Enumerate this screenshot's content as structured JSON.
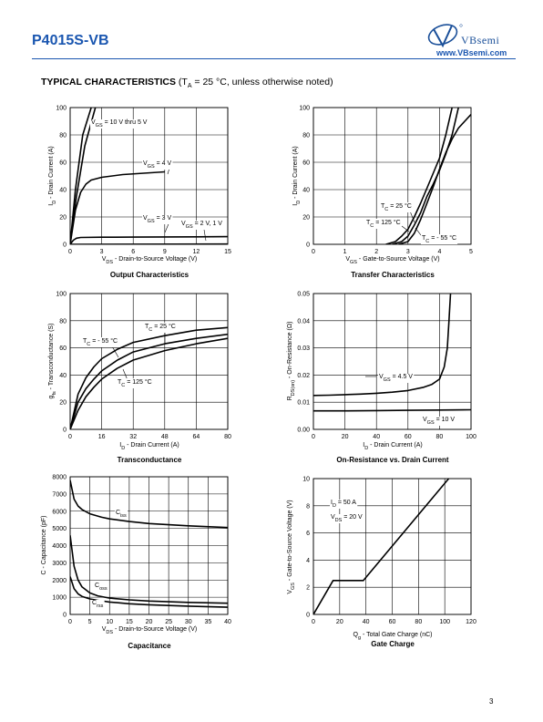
{
  "header": {
    "part_number": "P4015S-VB",
    "logo_text": "VBsemi",
    "logo_url": "www.VBsemi.com",
    "section_bold": "TYPICAL CHARACTERISTICS",
    "section_open": " (T",
    "section_sub": "A",
    "section_rest": " = 25 °C, unless otherwise noted)"
  },
  "page_number": "3",
  "chart_data": [
    {
      "id": "output",
      "type": "line",
      "title": "Output Characteristics",
      "xlabel": "V_DS - Drain-to-Source Voltage (V)",
      "ylabel": "I_D - Drain Current (A)",
      "xlim": [
        0,
        15
      ],
      "ylim": [
        0,
        100
      ],
      "xticks": [
        "0",
        "3",
        "6",
        "9",
        "12",
        "15"
      ],
      "yticks": [
        "0",
        "20",
        "40",
        "60",
        "80",
        "100"
      ],
      "grid": true,
      "series": [
        {
          "name": "V_GS = 10 V thru 5 V",
          "x": [
            0,
            0.5,
            1.2,
            2.0
          ],
          "y": [
            0,
            40,
            80,
            100
          ]
        },
        {
          "name": "",
          "x": [
            0,
            0.6,
            1.4,
            2.4
          ],
          "y": [
            0,
            35,
            72,
            100
          ]
        },
        {
          "name": "V_GS = 4 V",
          "x": [
            0,
            0.5,
            1.0,
            1.5,
            2.0,
            3,
            5,
            7,
            9
          ],
          "y": [
            0,
            25,
            38,
            44,
            47,
            49,
            51,
            52,
            53
          ]
        },
        {
          "name": "V_GS = 3 V",
          "x": [
            0,
            0.3,
            0.6,
            1,
            3,
            6,
            9,
            12,
            15
          ],
          "y": [
            0,
            3,
            4.5,
            5,
            5.2,
            5.3,
            5.4,
            5.5,
            5.6
          ]
        },
        {
          "name": "V_GS = 2 V, 1 V",
          "x": [
            0,
            15
          ],
          "y": [
            0,
            0.2
          ]
        }
      ],
      "annotations": [
        {
          "text": "V_GS = 10 V thru 5 V"
        },
        {
          "text": "V_GS = 4 V"
        },
        {
          "text": "V_GS = 3 V"
        },
        {
          "text": "V_GS = 2 V, 1 V"
        }
      ]
    },
    {
      "id": "transfer",
      "type": "line",
      "title": "Transfer Characteristics",
      "xlabel": "V_GS - Gate-to-Source Voltage (V)",
      "ylabel": "I_D - Drain Current (A)",
      "xlim": [
        0,
        5
      ],
      "ylim": [
        0,
        100
      ],
      "xticks": [
        "0",
        "1",
        "2",
        "3",
        "4",
        "5"
      ],
      "yticks": [
        "0",
        "20",
        "40",
        "60",
        "80",
        "100"
      ],
      "grid": true,
      "series": [
        {
          "name": "T_C = 25 °C",
          "x": [
            2.5,
            2.8,
            3.0,
            3.2,
            3.4,
            3.6,
            3.8,
            4.0,
            4.2,
            4.4,
            4.6
          ],
          "y": [
            0,
            2,
            6,
            14,
            23,
            35,
            44,
            54,
            66,
            80,
            100
          ]
        },
        {
          "name": "T_C = 125 °C",
          "x": [
            2.3,
            2.6,
            2.8,
            3.0,
            3.2,
            3.4,
            3.6,
            3.8,
            4.0,
            4.2,
            4.4
          ],
          "y": [
            0,
            2,
            6,
            11,
            20,
            30,
            41,
            52,
            63,
            80,
            100
          ]
        },
        {
          "name": "T_C = - 55 °C",
          "x": [
            2.7,
            3.0,
            3.2,
            3.4,
            3.6,
            3.8,
            4.0,
            4.2,
            4.4,
            4.6,
            4.8,
            5.0
          ],
          "y": [
            0,
            2,
            8,
            18,
            30,
            42,
            55,
            67,
            77,
            85,
            90,
            95
          ]
        }
      ],
      "annotations": [
        {
          "text": "T_C = 25 °C"
        },
        {
          "text": "T_C = 125 °C"
        },
        {
          "text": "T_C = - 55 °C"
        }
      ]
    },
    {
      "id": "transconductance",
      "type": "line",
      "title": "Transconductance",
      "xlabel": "I_D - Drain Current (A)",
      "ylabel": "g_fs - Transconductance (S)",
      "xlim": [
        0,
        80
      ],
      "ylim": [
        0,
        100
      ],
      "xticks": [
        "0",
        "16",
        "32",
        "48",
        "64",
        "80"
      ],
      "yticks": [
        "0",
        "20",
        "40",
        "60",
        "80",
        "100"
      ],
      "grid": true,
      "series": [
        {
          "name": "T_C = - 55 °C",
          "x": [
            0,
            4,
            8,
            12,
            16,
            24,
            32,
            48,
            64,
            80
          ],
          "y": [
            0,
            26,
            38,
            46,
            52,
            59,
            64,
            69,
            73,
            75
          ]
        },
        {
          "name": "T_C = 25 °C",
          "x": [
            0,
            4,
            8,
            12,
            16,
            24,
            32,
            48,
            64,
            80
          ],
          "y": [
            0,
            20,
            30,
            37,
            43,
            51,
            57,
            63,
            67,
            70
          ]
        },
        {
          "name": "T_C = 125 °C",
          "x": [
            0,
            4,
            8,
            12,
            16,
            24,
            32,
            48,
            64,
            80
          ],
          "y": [
            0,
            14,
            24,
            31,
            37,
            45,
            51,
            58,
            63,
            67
          ]
        }
      ],
      "annotations": [
        {
          "text": "T_C = - 55 °C"
        },
        {
          "text": "T_C = 25 °C"
        },
        {
          "text": "T_C = 125 °C"
        }
      ]
    },
    {
      "id": "onres",
      "type": "line",
      "title": "On-Resistance vs. Drain Current",
      "xlabel": "I_D - Drain Current (A)",
      "ylabel": "R_DS(on) - On-Resistance (Ω)",
      "xlim": [
        0,
        100
      ],
      "ylim": [
        0,
        0.05
      ],
      "xticks": [
        "0",
        "20",
        "40",
        "60",
        "80",
        "100"
      ],
      "yticks": [
        "0.00",
        "0.01",
        "0.02",
        "0.03",
        "0.04",
        "0.05"
      ],
      "grid": true,
      "series": [
        {
          "name": "V_GS = 4.5 V",
          "x": [
            0,
            10,
            20,
            30,
            40,
            50,
            60,
            70,
            75,
            80,
            83,
            85,
            86,
            87
          ],
          "y": [
            0.0125,
            0.0126,
            0.0128,
            0.013,
            0.0133,
            0.0137,
            0.0143,
            0.0155,
            0.0165,
            0.0185,
            0.023,
            0.03,
            0.04,
            0.05
          ]
        },
        {
          "name": "V_GS = 10 V",
          "x": [
            0,
            20,
            40,
            60,
            80,
            100
          ],
          "y": [
            0.0068,
            0.0068,
            0.0069,
            0.007,
            0.0071,
            0.0072
          ]
        }
      ],
      "annotations": [
        {
          "text": "V_GS = 4.5 V"
        },
        {
          "text": "V_GS = 10 V"
        }
      ]
    },
    {
      "id": "capacitance",
      "type": "line",
      "title": "Capacitance",
      "xlabel": "V_DS - Drain-to-Source Voltage (V)",
      "ylabel": "C - Capacitance (pF)",
      "xlim": [
        0,
        40
      ],
      "ylim": [
        0,
        8000
      ],
      "xticks": [
        "0",
        "5",
        "10",
        "15",
        "20",
        "25",
        "30",
        "35",
        "40"
      ],
      "yticks": [
        "0",
        "1000",
        "2000",
        "3000",
        "4000",
        "5000",
        "6000",
        "7000",
        "8000"
      ],
      "grid": true,
      "series": [
        {
          "name": "C_iss",
          "x": [
            0,
            1,
            2,
            3,
            5,
            8,
            10,
            15,
            20,
            30,
            40
          ],
          "y": [
            7800,
            6700,
            6300,
            6100,
            5850,
            5650,
            5550,
            5400,
            5280,
            5150,
            5050
          ]
        },
        {
          "name": "C_oss",
          "x": [
            0,
            1,
            2,
            3,
            5,
            7,
            10,
            15,
            20,
            30,
            40
          ],
          "y": [
            4600,
            2800,
            2000,
            1600,
            1250,
            1080,
            950,
            850,
            780,
            700,
            650
          ]
        },
        {
          "name": "C_rss",
          "x": [
            0,
            1,
            2,
            3,
            5,
            7,
            10,
            15,
            20,
            30,
            40
          ],
          "y": [
            2200,
            1500,
            1200,
            1050,
            900,
            820,
            720,
            620,
            560,
            480,
            420
          ]
        }
      ],
      "annotations": [
        {
          "text": "C_iss"
        },
        {
          "text": "C_oss"
        },
        {
          "text": "C_rss"
        }
      ]
    },
    {
      "id": "gatecharge",
      "type": "line",
      "title": "Gate Charge",
      "xlabel": "Q_g - Total Gate Charge (nC)",
      "ylabel": "V_GS - Gate-to-Source Voltage (V)",
      "xlim": [
        0,
        120
      ],
      "ylim": [
        0,
        10
      ],
      "xticks": [
        "0",
        "20",
        "40",
        "60",
        "80",
        "100",
        "120"
      ],
      "yticks": [
        "0",
        "2",
        "4",
        "6",
        "8",
        "10"
      ],
      "grid": true,
      "series": [
        {
          "name": "",
          "x": [
            0,
            15,
            38,
            103
          ],
          "y": [
            0,
            2.5,
            2.5,
            10
          ]
        }
      ],
      "annotations": [
        {
          "text": "I_D = 50 A"
        },
        {
          "text": "V_DS = 20 V"
        }
      ]
    }
  ]
}
